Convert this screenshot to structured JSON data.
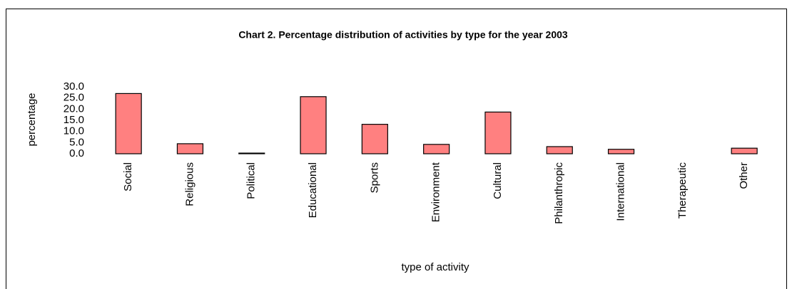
{
  "chart_data": {
    "type": "bar",
    "title": "Chart 2.  Percentage distribution of activities by type for the year 2003",
    "x_label": "type of activity",
    "y_label": "percentage",
    "categories": [
      "Social",
      "Religious",
      "Political",
      "Educational",
      "Sports",
      "Environment",
      "Cultural",
      "Philanthropic",
      "International",
      "Therapeutic",
      "Other"
    ],
    "values": [
      27.0,
      4.5,
      0.3,
      25.6,
      13.2,
      4.2,
      18.7,
      3.2,
      2.0,
      0.0,
      2.5
    ],
    "color": "#ff8080",
    "ylim": [
      0,
      30
    ],
    "yticks": [
      {
        "value": 0,
        "label": "0.0"
      },
      {
        "value": 5,
        "label": "5.0"
      },
      {
        "value": 10,
        "label": "10.0"
      },
      {
        "value": 15,
        "label": "15.0"
      },
      {
        "value": 20,
        "label": "20.0"
      },
      {
        "value": 25,
        "label": "25.0"
      },
      {
        "value": 30,
        "label": "30.0"
      }
    ],
    "grid": false
  }
}
